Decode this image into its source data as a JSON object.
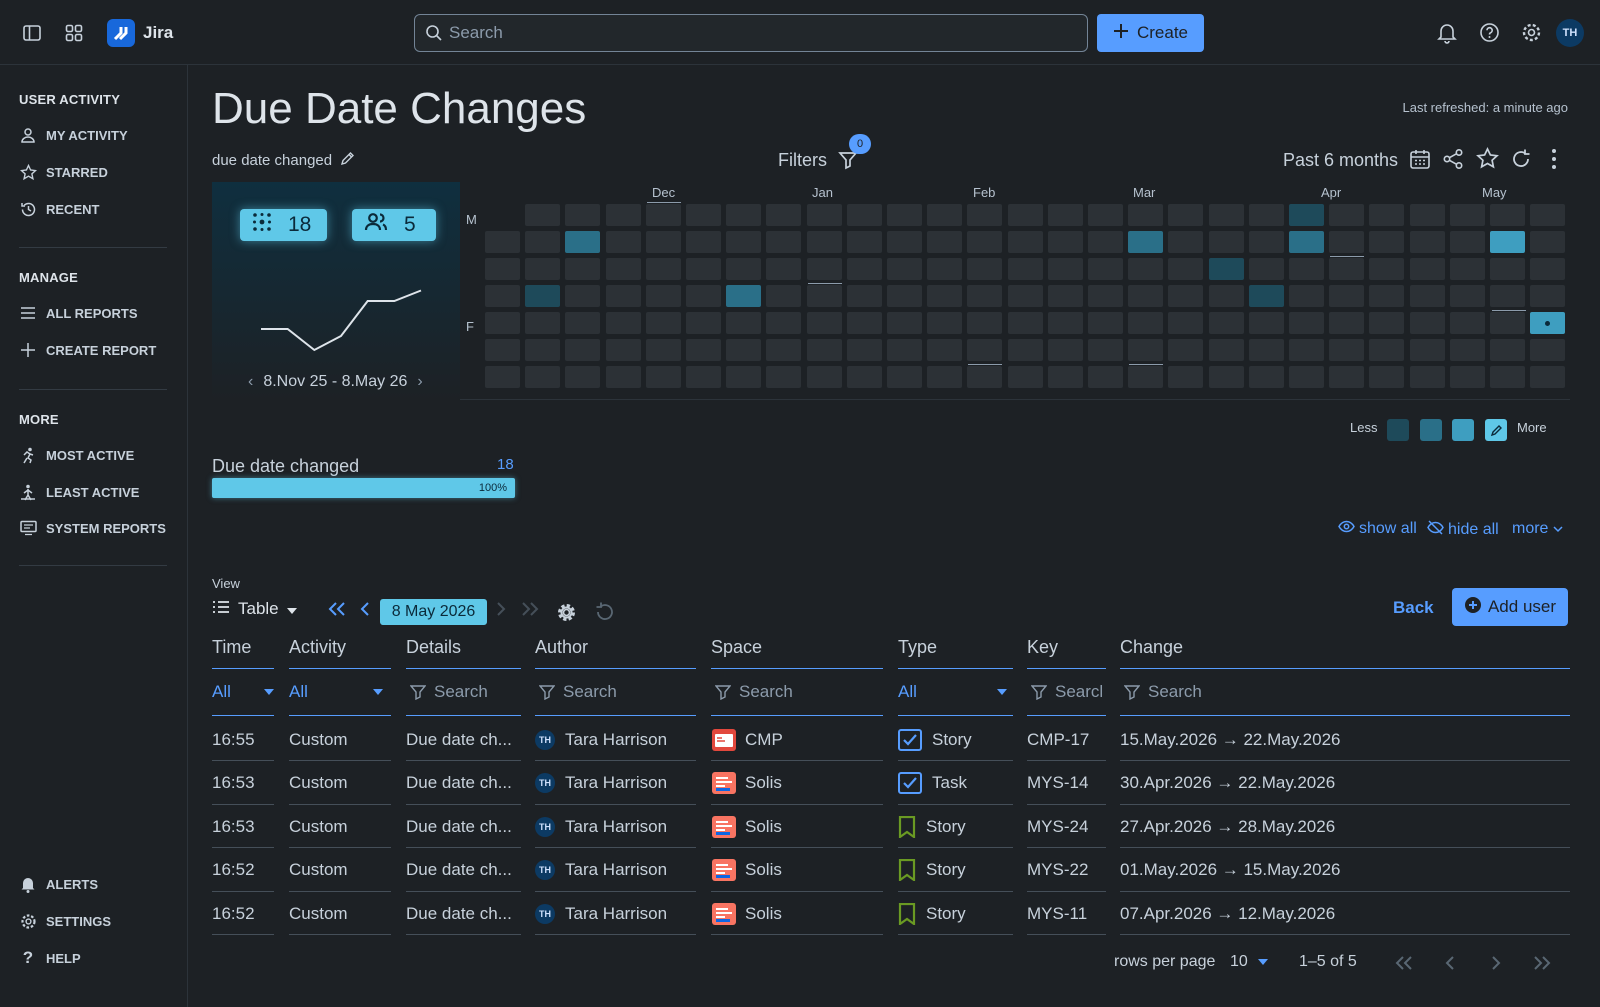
{
  "app": {
    "name": "Jira",
    "search_placeholder": "Search",
    "create_label": "Create",
    "avatar_initials": "TH"
  },
  "sidebar": {
    "sections": [
      {
        "heading": "USER ACTIVITY",
        "items": [
          {
            "label": "MY ACTIVITY",
            "icon": "person-icon"
          },
          {
            "label": "STARRED",
            "icon": "star-icon"
          },
          {
            "label": "RECENT",
            "icon": "history-icon"
          }
        ]
      },
      {
        "heading": "MANAGE",
        "items": [
          {
            "label": "ALL REPORTS",
            "icon": "list-icon"
          },
          {
            "label": "CREATE REPORT",
            "icon": "plus-icon"
          }
        ]
      },
      {
        "heading": "MORE",
        "items": [
          {
            "label": "MOST ACTIVE",
            "icon": "running-icon"
          },
          {
            "label": "LEAST ACTIVE",
            "icon": "walking-icon"
          },
          {
            "label": "SYSTEM REPORTS",
            "icon": "monitor-icon"
          }
        ]
      }
    ],
    "bottom": [
      {
        "label": "ALERTS",
        "icon": "bell-icon"
      },
      {
        "label": "SETTINGS",
        "icon": "gear-icon"
      },
      {
        "label": "HELP",
        "icon": "question-icon"
      }
    ]
  },
  "report": {
    "title": "Due Date Changes",
    "last_refreshed": "Last refreshed: a minute ago",
    "subtitle": "due date changed",
    "filters_label": "Filters",
    "filters_count": "0",
    "range_label": "Past 6 months"
  },
  "summary": {
    "changes": "18",
    "users": "5",
    "date_range": "8.Nov 25 - 8.May 26",
    "sparkline": [
      0.6,
      0.6,
      0.9,
      0.7,
      0.2,
      0.2,
      0.05
    ]
  },
  "heatmap": {
    "months": [
      "Dec",
      "Jan",
      "Feb",
      "Mar",
      "Apr",
      "May"
    ],
    "row_labels": [
      "M",
      "F"
    ],
    "weeks": 27,
    "active": [
      {
        "week": 20,
        "day": 0,
        "level": 1
      },
      {
        "week": 2,
        "day": 1,
        "level": 2
      },
      {
        "week": 16,
        "day": 1,
        "level": 2
      },
      {
        "week": 20,
        "day": 1,
        "level": 2
      },
      {
        "week": 25,
        "day": 1,
        "level": 3
      },
      {
        "week": 18,
        "day": 2,
        "level": 1
      },
      {
        "week": 1,
        "day": 3,
        "level": 1
      },
      {
        "week": 6,
        "day": 3,
        "level": 2
      },
      {
        "week": 19,
        "day": 3,
        "level": 1
      },
      {
        "week": 26,
        "day": 4,
        "level": 3
      }
    ],
    "legend_less": "Less",
    "legend_more": "More",
    "legend_colors": [
      "#1e4a5a",
      "#2a6f88",
      "#3e9ec0",
      "#5fc8e8"
    ]
  },
  "breakdown": {
    "label": "Due date changed",
    "value": "18",
    "percent_label": "100%",
    "percent": 100
  },
  "links": {
    "show_all": "show all",
    "hide_all": "hide all",
    "more": "more"
  },
  "view": {
    "label": "View",
    "mode": "Table",
    "date": "8 May 2026",
    "back": "Back",
    "add_user": "Add user"
  },
  "table": {
    "columns": [
      "Time",
      "Activity",
      "Details",
      "Author",
      "Space",
      "Type",
      "Key",
      "Change"
    ],
    "filters": {
      "time": "All",
      "activity": "All",
      "search": "Search",
      "key_search": "Searcl",
      "type": "All"
    },
    "rows": [
      {
        "time": "16:55",
        "activity": "Custom",
        "details": "Due date ch...",
        "author": "Tara Harrison",
        "author_initials": "TH",
        "space": "CMP",
        "type": "Story",
        "type_icon": "checkbox-icon",
        "key": "CMP-17",
        "change": "15.May.2026 → 22.May.2026"
      },
      {
        "time": "16:53",
        "activity": "Custom",
        "details": "Due date ch...",
        "author": "Tara Harrison",
        "author_initials": "TH",
        "space": "Solis",
        "type": "Task",
        "type_icon": "checkbox-icon",
        "key": "MYS-14",
        "change": "30.Apr.2026 → 22.May.2026"
      },
      {
        "time": "16:53",
        "activity": "Custom",
        "details": "Due date ch...",
        "author": "Tara Harrison",
        "author_initials": "TH",
        "space": "Solis",
        "type": "Story",
        "type_icon": "bookmark-icon",
        "key": "MYS-24",
        "change": "27.Apr.2026 → 28.May.2026"
      },
      {
        "time": "16:52",
        "activity": "Custom",
        "details": "Due date ch...",
        "author": "Tara Harrison",
        "author_initials": "TH",
        "space": "Solis",
        "type": "Story",
        "type_icon": "bookmark-icon",
        "key": "MYS-22",
        "change": "01.May.2026 → 15.May.2026"
      },
      {
        "time": "16:52",
        "activity": "Custom",
        "details": "Due date ch...",
        "author": "Tara Harrison",
        "author_initials": "TH",
        "space": "Solis",
        "type": "Story",
        "type_icon": "bookmark-icon",
        "key": "MYS-11",
        "change": "07.Apr.2026 → 12.May.2026"
      }
    ]
  },
  "pagination": {
    "rows_per_page_label": "rows per page",
    "rows_per_page": "10",
    "range": "1–5 of 5"
  }
}
